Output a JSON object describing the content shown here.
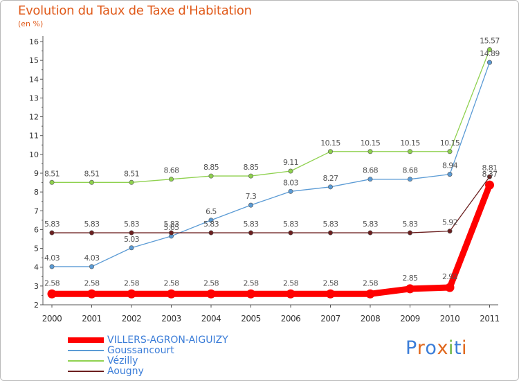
{
  "chart_data": {
    "type": "line",
    "title": "Evolution du Taux de Taxe d'Habitation",
    "subtitle": "(en %)",
    "categories": [
      "2000",
      "2001",
      "2002",
      "2003",
      "2004",
      "2005",
      "2006",
      "2007",
      "2008",
      "2009",
      "2010",
      "2011"
    ],
    "ylim": [
      2,
      16
    ],
    "yticks": [
      "2",
      "3",
      "4",
      "5",
      "6",
      "7",
      "8",
      "9",
      "10",
      "11",
      "12",
      "13",
      "14",
      "15",
      "16"
    ],
    "grid": false,
    "legend_position": "bottom-left",
    "series": [
      {
        "name": "VILLERS-AGRON-AIGUIZY",
        "color": "#ff0000",
        "values": [
          2.58,
          2.58,
          2.58,
          2.58,
          2.58,
          2.58,
          2.58,
          2.58,
          2.58,
          2.85,
          2.92,
          8.37
        ],
        "labels": [
          "2.58",
          "2.58",
          "2.58",
          "2.58",
          "2.58",
          "2.58",
          "2.58",
          "2.58",
          "2.58",
          "2.85",
          "2.92",
          "8.37"
        ]
      },
      {
        "name": "Goussancourt",
        "color": "#5b9bd5",
        "values": [
          4.03,
          4.03,
          5.03,
          5.65,
          6.5,
          7.3,
          8.03,
          8.27,
          8.68,
          8.68,
          8.94,
          14.89
        ],
        "labels": [
          "4.03",
          "4.03",
          "5.03",
          "5.65",
          "6.5",
          "7.3",
          "8.03",
          "8.27",
          "8.68",
          "8.68",
          "8.94",
          "14.89"
        ]
      },
      {
        "name": "Vézilly",
        "color": "#8fd14f",
        "values": [
          8.51,
          8.51,
          8.51,
          8.68,
          8.85,
          8.85,
          9.11,
          10.15,
          10.15,
          10.15,
          10.15,
          15.57
        ],
        "labels": [
          "8.51",
          "8.51",
          "8.51",
          "8.68",
          "8.85",
          "8.85",
          "9.11",
          "10.15",
          "10.15",
          "10.15",
          "10.15",
          "15.57"
        ]
      },
      {
        "name": "Aougny",
        "color": "#6b1f1f",
        "values": [
          5.83,
          5.83,
          5.83,
          5.83,
          5.83,
          5.83,
          5.83,
          5.83,
          5.83,
          5.83,
          5.92,
          8.81
        ],
        "labels": [
          "5.83",
          "5.83",
          "5.83",
          "5.83",
          "5.83",
          "5.83",
          "5.83",
          "5.83",
          "5.83",
          "5.83",
          "5.92",
          "8.81"
        ]
      }
    ]
  },
  "brand": {
    "letters": [
      "P",
      "r",
      "o",
      "x",
      "i",
      "t",
      "i"
    ],
    "colors": [
      "#3b7dd8",
      "#e0671c",
      "#3b7dd8",
      "#e0671c",
      "#6ab43e",
      "#3b7dd8",
      "#e0671c"
    ]
  }
}
